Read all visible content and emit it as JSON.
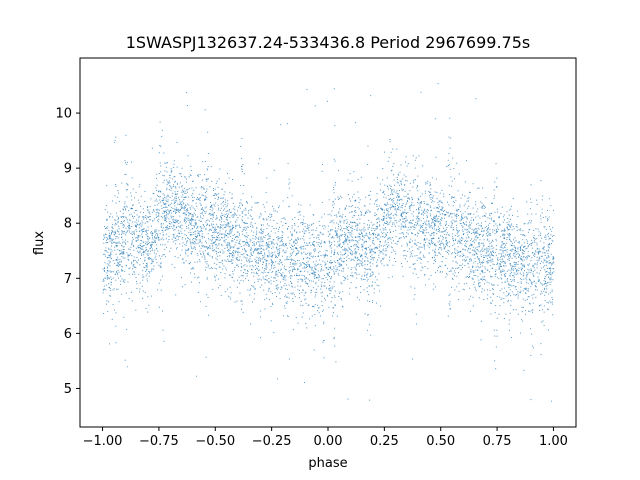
{
  "chart_data": {
    "type": "scatter",
    "title": "1SWASPJ132637.24-533436.8 Period 2967699.75s",
    "xlabel": "phase",
    "ylabel": "flux",
    "xlim": [
      -1.1,
      1.1
    ],
    "ylim": [
      4.3,
      11.0
    ],
    "xticks": [
      -1.0,
      -0.75,
      -0.5,
      -0.25,
      0.0,
      0.25,
      0.5,
      0.75,
      1.0
    ],
    "xtick_labels": [
      "−1.00",
      "−0.75",
      "−0.50",
      "−0.25",
      "0.00",
      "0.25",
      "0.50",
      "0.75",
      "1.00"
    ],
    "yticks": [
      5,
      6,
      7,
      8,
      9,
      10
    ],
    "ytick_labels": [
      "5",
      "6",
      "7",
      "8",
      "9",
      "10"
    ],
    "grid": false,
    "point_color": "#1f77b4",
    "trend_phase": [
      -1.0,
      -0.9,
      -0.8,
      -0.72,
      -0.6,
      -0.5,
      -0.4,
      -0.3,
      -0.2,
      -0.1,
      0.0,
      0.1,
      0.2,
      0.28,
      0.4,
      0.5,
      0.6,
      0.7,
      0.8,
      0.9,
      1.0
    ],
    "trend_flux": [
      7.3,
      7.8,
      7.6,
      8.3,
      8.0,
      7.9,
      7.7,
      7.5,
      7.4,
      7.3,
      7.3,
      7.8,
      7.6,
      8.3,
      8.0,
      7.9,
      7.7,
      7.5,
      7.4,
      7.3,
      7.3
    ]
  }
}
